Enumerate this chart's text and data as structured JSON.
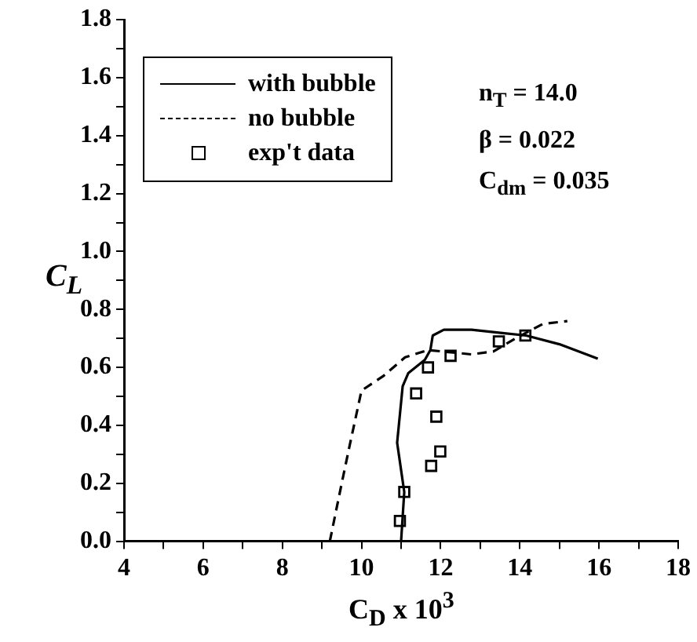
{
  "chart_data": {
    "type": "line",
    "xlabel": "C$_{D}$ x 10$^{3}$",
    "ylabel": "C$_{L}$",
    "annotations": [
      "n$_{T}$  = 14.0",
      "β  = 0.022",
      "C$_{dm}$ = 0.035"
    ],
    "xlim": [
      4,
      18
    ],
    "ylim": [
      0,
      1.8
    ],
    "xticks": [
      4,
      {
        "value": 5,
        "label": null
      },
      6,
      {
        "value": 7,
        "label": null
      },
      8,
      {
        "value": 9,
        "label": null
      },
      10,
      {
        "value": 11,
        "label": null
      },
      12,
      {
        "value": 13,
        "label": null
      },
      14,
      {
        "value": 15,
        "label": null
      },
      16,
      {
        "value": 17,
        "label": null
      },
      18
    ],
    "yticks": [
      {
        "value": 0,
        "label": "0.0"
      },
      {
        "value": 0.1,
        "label": null
      },
      {
        "value": 0.2,
        "label": "0.2"
      },
      {
        "value": 0.3,
        "label": null
      },
      {
        "value": 0.4,
        "label": "0.4"
      },
      {
        "value": 0.5,
        "label": null
      },
      {
        "value": 0.6,
        "label": "0.6"
      },
      {
        "value": 0.7,
        "label": null
      },
      {
        "value": 0.8,
        "label": "0.8"
      },
      {
        "value": 0.9,
        "label": null
      },
      {
        "value": 1.0,
        "label": "1.0"
      },
      {
        "value": 1.1,
        "label": null
      },
      {
        "value": 1.2,
        "label": "1.2"
      },
      {
        "value": 1.3,
        "label": null
      },
      {
        "value": 1.4,
        "label": "1.4"
      },
      {
        "value": 1.5,
        "label": null
      },
      {
        "value": 1.6,
        "label": "1.6"
      },
      {
        "value": 1.7,
        "label": null
      },
      {
        "value": 1.8,
        "label": "1.8"
      }
    ],
    "grid": false,
    "legend": "top left",
    "series": [
      {
        "name": "with bubble",
        "color": "#000000",
        "line_style": "solid",
        "x": [
          11.0,
          11.08,
          10.9,
          11.04,
          11.18,
          11.6,
          11.74,
          11.8,
          12.08,
          12.78,
          13.47,
          14.16,
          15.0,
          15.97
        ],
        "values": [
          0,
          0.17,
          0.34,
          0.535,
          0.58,
          0.626,
          0.66,
          0.71,
          0.73,
          0.73,
          0.72,
          0.71,
          0.68,
          0.63
        ]
      },
      {
        "name": "no bubble",
        "color": "#000000",
        "line_style": "dashed",
        "x": [
          9.2,
          9.35,
          9.5,
          9.7,
          10.0,
          10.55,
          11.1,
          11.68,
          12.78,
          13.33,
          13.89,
          14.58,
          15.2
        ],
        "values": [
          0,
          0.1,
          0.2,
          0.33,
          0.52,
          0.57,
          0.635,
          0.66,
          0.645,
          0.655,
          0.7,
          0.75,
          0.76
        ]
      },
      {
        "name": "exp't data",
        "type": "scatter",
        "color": "#000000",
        "marker": "square",
        "x": [
          10.97,
          11.08,
          11.76,
          11.99,
          11.89,
          11.38,
          11.68,
          12.25,
          13.47,
          14.14
        ],
        "values": [
          0.07,
          0.17,
          0.26,
          0.31,
          0.43,
          0.51,
          0.6,
          0.64,
          0.69,
          0.71
        ]
      }
    ]
  }
}
